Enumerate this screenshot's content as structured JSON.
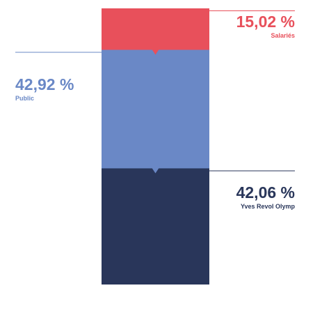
{
  "chart_data": {
    "type": "bar",
    "stacked": true,
    "unit": "%",
    "categories": [
      ""
    ],
    "series": [
      {
        "name": "Salariés",
        "value": 15.02,
        "value_label": "15,02 %",
        "color": "#e8505b"
      },
      {
        "name": "Public",
        "value": 42.92,
        "value_label": "42,92 %",
        "color": "#6a88c6"
      },
      {
        "name": "Yves Revol Olymp",
        "value": 42.06,
        "value_label": "42,06 %",
        "color": "#29365a"
      }
    ]
  }
}
